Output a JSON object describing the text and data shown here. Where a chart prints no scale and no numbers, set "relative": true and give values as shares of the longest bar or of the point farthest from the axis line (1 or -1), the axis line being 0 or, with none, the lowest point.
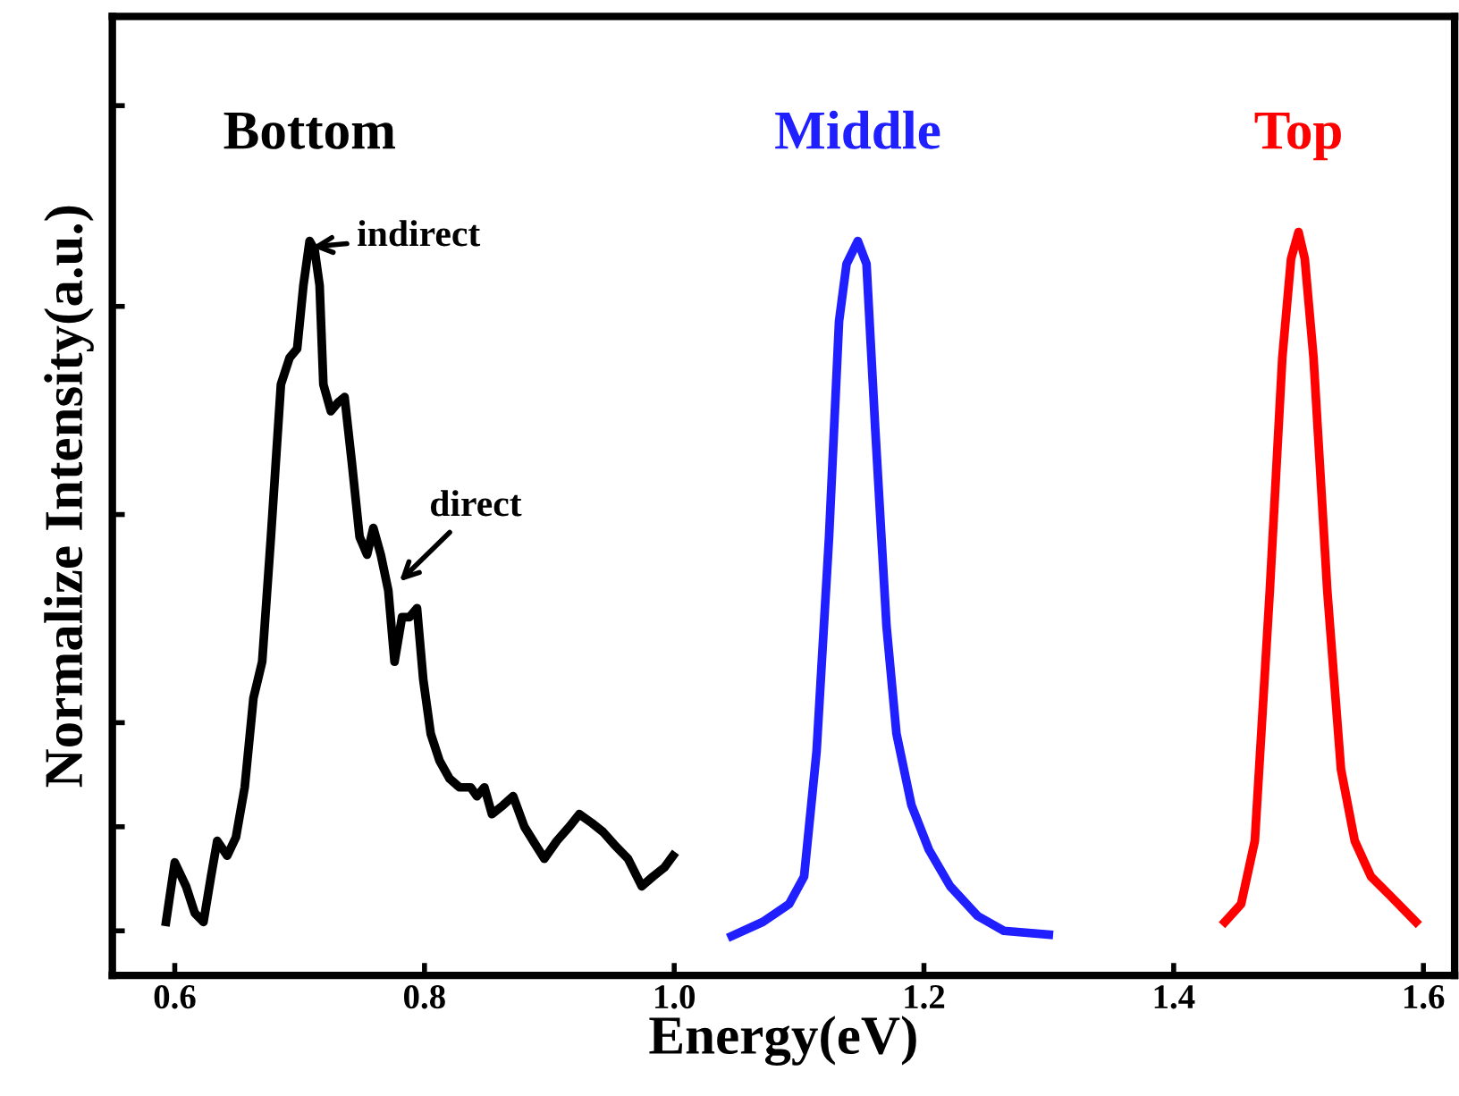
{
  "chart_data": {
    "type": "line",
    "relative": true,
    "xlabel": "Energy(eV)",
    "ylabel": "Normalize Intensity(a.u.)",
    "xlim": [
      0.55,
      1.625
    ],
    "xticks": [
      {
        "value": 0.6,
        "label": "0.6"
      },
      {
        "value": 0.8,
        "label": "0.8"
      },
      {
        "value": 1.0,
        "label": "1.0"
      },
      {
        "value": 1.2,
        "label": "1.2"
      },
      {
        "value": 1.4,
        "label": "1.4"
      },
      {
        "value": 1.6,
        "label": "1.6"
      }
    ],
    "grid": false,
    "legend": "top",
    "marker": "none",
    "line_style": "solid",
    "series": [
      {
        "name": "Bottom",
        "color": "#000000",
        "x": [
          0.593,
          0.6,
          0.609,
          0.616,
          0.623,
          0.629,
          0.634,
          0.642,
          0.649,
          0.656,
          0.663,
          0.67,
          0.677,
          0.685,
          0.692,
          0.698,
          0.703,
          0.708,
          0.712,
          0.716,
          0.719,
          0.725,
          0.731,
          0.736,
          0.742,
          0.748,
          0.754,
          0.759,
          0.765,
          0.771,
          0.776,
          0.782,
          0.788,
          0.794,
          0.799,
          0.805,
          0.812,
          0.82,
          0.828,
          0.837,
          0.842,
          0.848,
          0.854,
          0.863,
          0.871,
          0.88,
          0.887,
          0.896,
          0.906,
          0.916,
          0.924,
          0.934,
          0.943,
          0.952,
          0.963,
          0.974,
          0.983,
          0.992,
          0.999
        ],
        "values": [
          0.072,
          0.152,
          0.12,
          0.084,
          0.072,
          0.133,
          0.181,
          0.161,
          0.186,
          0.253,
          0.373,
          0.422,
          0.59,
          0.795,
          0.831,
          0.843,
          0.928,
          0.988,
          0.976,
          0.928,
          0.795,
          0.759,
          0.771,
          0.778,
          0.687,
          0.59,
          0.566,
          0.602,
          0.566,
          0.518,
          0.422,
          0.482,
          0.482,
          0.494,
          0.398,
          0.325,
          0.289,
          0.265,
          0.253,
          0.253,
          0.241,
          0.253,
          0.217,
          0.229,
          0.241,
          0.2,
          0.181,
          0.157,
          0.181,
          0.2,
          0.217,
          0.205,
          0.193,
          0.176,
          0.157,
          0.12,
          0.133,
          0.145,
          0.161
        ]
      },
      {
        "name": "Middle",
        "color": "#1f1fff",
        "x": [
          1.046,
          1.071,
          1.092,
          1.104,
          1.114,
          1.124,
          1.132,
          1.138,
          1.147,
          1.154,
          1.161,
          1.17,
          1.178,
          1.19,
          1.204,
          1.221,
          1.243,
          1.264,
          1.3
        ],
        "values": [
          0.053,
          0.072,
          0.096,
          0.133,
          0.301,
          0.59,
          0.88,
          0.957,
          0.988,
          0.957,
          0.735,
          0.47,
          0.325,
          0.229,
          0.169,
          0.12,
          0.08,
          0.06,
          0.055
        ]
      },
      {
        "name": "Top",
        "color": "#ff0000",
        "x": [
          1.441,
          1.454,
          1.465,
          1.477,
          1.487,
          1.494,
          1.5,
          1.505,
          1.512,
          1.523,
          1.534,
          1.545,
          1.558,
          1.573,
          1.594
        ],
        "values": [
          0.072,
          0.096,
          0.181,
          0.518,
          0.831,
          0.964,
          1.0,
          0.964,
          0.831,
          0.518,
          0.277,
          0.181,
          0.133,
          0.108,
          0.072
        ]
      }
    ],
    "annotations": [
      {
        "text": "indirect",
        "x": 0.71,
        "y": 0.98
      },
      {
        "text": "direct",
        "x": 0.78,
        "y": 0.53
      }
    ]
  }
}
